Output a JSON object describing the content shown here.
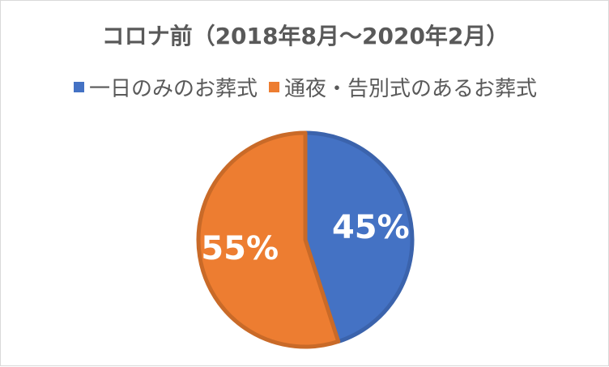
{
  "chart_data": {
    "type": "pie",
    "title": "コロナ前（2018年8月～2020年2月）",
    "categories": [
      "一日のみのお葬式",
      "通夜・告別式のあるお葬式"
    ],
    "values": [
      45,
      55
    ],
    "data_labels": [
      "45%",
      "55%"
    ],
    "colors": [
      "#4472C4",
      "#ED7D31"
    ],
    "legend_position": "top"
  }
}
